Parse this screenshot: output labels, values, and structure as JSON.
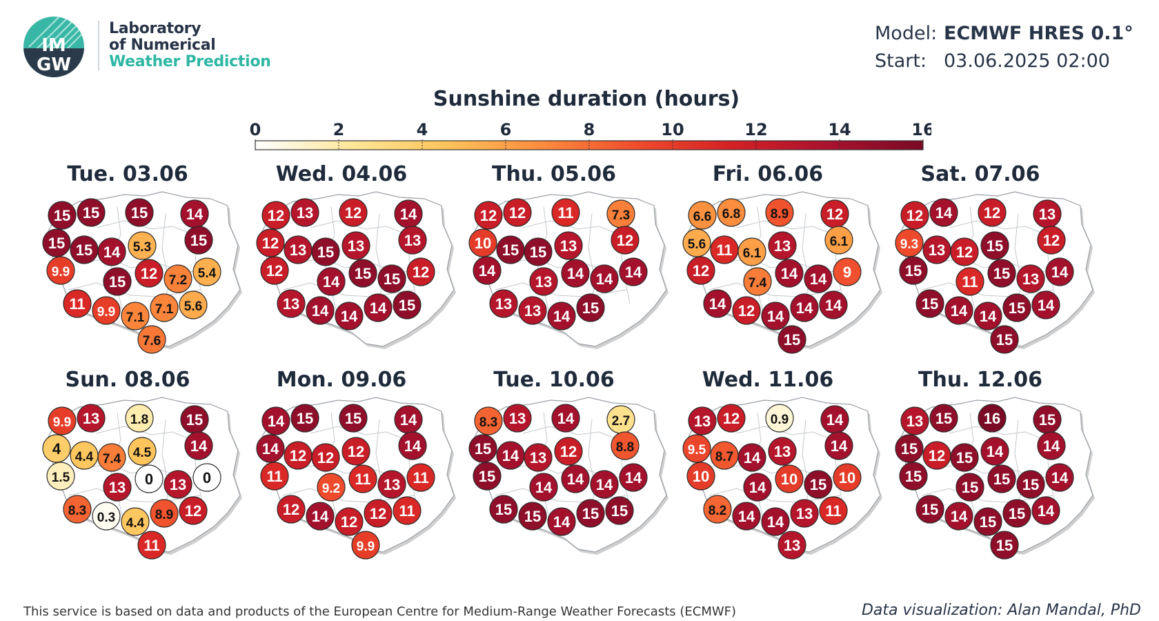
{
  "header": {
    "logo_text": [
      "IM",
      "GW"
    ],
    "lab_lines": [
      "Laboratory",
      "of Numerical",
      "Weather Prediction"
    ],
    "model_label": "Model:",
    "model_value": "ECMWF HRES 0.1°",
    "start_label": "Start:",
    "start_value": "03.06.2025 02:00"
  },
  "title": "Sunshine duration (hours)",
  "colorbar": {
    "ticks": [
      "0",
      "2",
      "4",
      "6",
      "8",
      "10",
      "12",
      "14",
      "16"
    ],
    "min": 0,
    "max": 16,
    "colors": [
      "#ffffff",
      "#ffe79a",
      "#ffc45a",
      "#fb8c3d",
      "#ef4c2c",
      "#d42024",
      "#a9122e",
      "#7a0a25"
    ]
  },
  "chart_data": {
    "type": "map",
    "region": "Poland",
    "unit": "hours",
    "days": [
      {
        "label": "Tue. 03.06",
        "values": [
          "15",
          "15",
          "15",
          "14",
          "15",
          "15",
          "5.3",
          "15",
          "14",
          "9.9",
          "15",
          "12",
          "7.2",
          "5.4",
          "11",
          "9.9",
          "7.1",
          "7.1",
          "5.6",
          "7.6"
        ]
      },
      {
        "label": "Wed. 04.06",
        "values": [
          "12",
          "13",
          "12",
          "14",
          "12",
          "13",
          "13",
          "13",
          "15",
          "12",
          "14",
          "15",
          "15",
          "12",
          "13",
          "14",
          "14",
          "14",
          "15"
        ]
      },
      {
        "label": "Thu. 05.06",
        "values": [
          "12",
          "12",
          "11",
          "7.3",
          "10",
          "15",
          "13",
          "12",
          "15",
          "14",
          "13",
          "14",
          "14",
          "14",
          "13",
          "13",
          "14",
          "15"
        ]
      },
      {
        "label": "Fri. 06.06",
        "values": [
          "6.6",
          "6.8",
          "8.9",
          "12",
          "5.6",
          "11",
          "13",
          "6.1",
          "6.1",
          "12",
          "7.4",
          "14",
          "14",
          "9",
          "14",
          "12",
          "14",
          "14",
          "14",
          "15"
        ]
      },
      {
        "label": "Sat. 07.06",
        "values": [
          "12",
          "14",
          "12",
          "13",
          "9.3",
          "13",
          "15",
          "12",
          "12",
          "15",
          "11",
          "15",
          "13",
          "14",
          "15",
          "14",
          "14",
          "15",
          "14",
          "15"
        ]
      },
      {
        "label": "Sun. 08.06",
        "values": [
          "9.9",
          "13",
          "1.8",
          "15",
          "4",
          "4.4",
          "4.5",
          "14",
          "7.4",
          "1.5",
          "13",
          "0",
          "13",
          "0",
          "8.3",
          "0.3",
          "4.4",
          "8.9",
          "12",
          "11"
        ]
      },
      {
        "label": "Mon. 09.06",
        "values": [
          "14",
          "15",
          "15",
          "14",
          "14",
          "12",
          "12",
          "14",
          "12",
          "11",
          "9.2",
          "11",
          "13",
          "11",
          "12",
          "14",
          "12",
          "12",
          "11",
          "9.9"
        ]
      },
      {
        "label": "Tue. 10.06",
        "values": [
          "8.3",
          "13",
          "14",
          "2.7",
          "15",
          "14",
          "12",
          "8.8",
          "13",
          "15",
          "14",
          "14",
          "14",
          "14",
          "15",
          "15",
          "14",
          "15",
          "15"
        ]
      },
      {
        "label": "Wed. 11.06",
        "values": [
          "13",
          "12",
          "0.9",
          "14",
          "9.5",
          "8.7",
          "13",
          "14",
          "14",
          "10",
          "14",
          "10",
          "15",
          "10",
          "8.2",
          "14",
          "14",
          "13",
          "11",
          "13"
        ]
      },
      {
        "label": "Thu. 12.06",
        "values": [
          "13",
          "15",
          "16",
          "15",
          "15",
          "12",
          "14",
          "14",
          "15",
          "15",
          "15",
          "15",
          "15",
          "14",
          "15",
          "14",
          "15",
          "15",
          "14",
          "15"
        ]
      }
    ]
  },
  "footer": {
    "left": "This service is based on data and products of the European Centre for Medium-Range Weather Forecasts (ECMWF)",
    "right": "Data visualization: Alan Mandal, PhD"
  }
}
